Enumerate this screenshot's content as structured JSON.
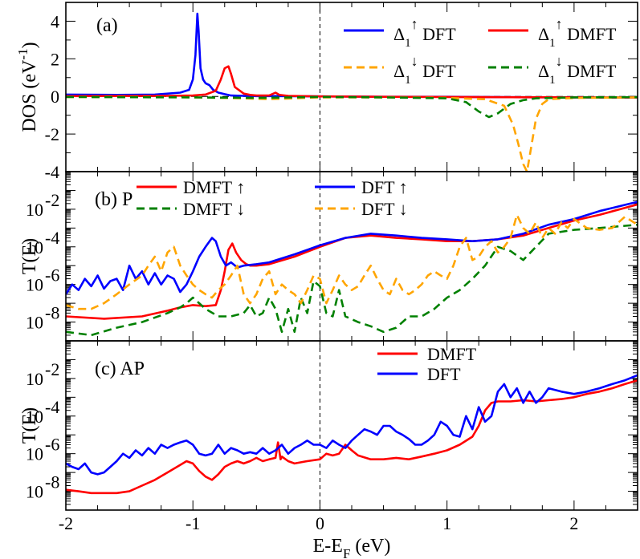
{
  "chart_data": [
    {
      "panel": "(a)",
      "type": "line",
      "ylabel": "DOS (eV",
      "ylabel_sup": "-1",
      "ylabel_close": ")",
      "ylim": [
        -4,
        5
      ],
      "yticks": [
        -4,
        -2,
        0,
        2,
        4
      ],
      "xlim": [
        -2,
        2.5
      ],
      "legend": "top-right",
      "series": [
        {
          "name": "DFT",
          "sym": "Δ",
          "sub": "1",
          "arrow": "↑",
          "color": "#0000ff",
          "dash": "",
          "x": [
            -2,
            -1.6,
            -1.3,
            -1.1,
            -1.03,
            -1,
            -0.98,
            -0.965,
            -0.955,
            -0.94,
            -0.92,
            -0.9,
            -0.87,
            -0.84,
            -0.8,
            -0.75,
            -0.7,
            -0.6,
            -0.5,
            -0.35,
            -0.2,
            0,
            0.5,
            1,
            1.5,
            2,
            2.5
          ],
          "y": [
            0.1,
            0.08,
            0.1,
            0.2,
            0.35,
            0.9,
            2.2,
            4.4,
            3.5,
            1.5,
            0.9,
            0.7,
            0.6,
            0.35,
            0.2,
            0.12,
            0.05,
            0.03,
            0.02,
            0.02,
            0.01,
            0,
            -0.02,
            -0.02,
            -0.04,
            -0.05,
            -0.06
          ]
        },
        {
          "name": "DMFT",
          "sym": "Δ",
          "sub": "1",
          "arrow": "↑",
          "color": "#ff0000",
          "dash": "",
          "x": [
            -2,
            -1.2,
            -1,
            -0.9,
            -0.82,
            -0.78,
            -0.75,
            -0.72,
            -0.7,
            -0.67,
            -0.63,
            -0.6,
            -0.55,
            -0.5,
            -0.4,
            -0.35,
            -0.32,
            -0.25,
            0,
            0.5,
            1,
            2,
            2.5
          ],
          "y": [
            0.02,
            0.03,
            0.05,
            0.1,
            0.3,
            0.9,
            1.5,
            1.6,
            1.2,
            0.5,
            0.3,
            0.15,
            0.08,
            0.05,
            0.05,
            0.2,
            0.08,
            0.03,
            0,
            -0.02,
            -0.03,
            -0.05,
            -0.06
          ]
        },
        {
          "name": "DFT",
          "sym": "Δ",
          "sub": "1",
          "arrow": "↓",
          "color": "#ffa500",
          "dash": "10,6",
          "x": [
            -2,
            -1.5,
            -1,
            -0.6,
            -0.4,
            -0.2,
            0,
            0.5,
            1,
            1.3,
            1.45,
            1.52,
            1.56,
            1.6,
            1.63,
            1.66,
            1.7,
            1.75,
            1.8,
            2,
            2.5
          ],
          "y": [
            -0.03,
            -0.03,
            -0.05,
            -0.1,
            -0.15,
            -0.1,
            -0.05,
            -0.05,
            -0.08,
            -0.15,
            -0.5,
            -1.5,
            -2.5,
            -3.6,
            -4,
            -2.8,
            -1.2,
            -0.4,
            -0.15,
            -0.08,
            -0.05
          ]
        },
        {
          "name": "DMFT",
          "sym": "Δ",
          "sub": "1",
          "arrow": "↓",
          "color": "#008000",
          "dash": "10,6",
          "x": [
            -2,
            -1.5,
            -1,
            -0.5,
            -0.3,
            0,
            0.5,
            1,
            1.15,
            1.25,
            1.33,
            1.4,
            1.5,
            1.6,
            1.7,
            2,
            2.5
          ],
          "y": [
            -0.03,
            -0.04,
            -0.05,
            -0.08,
            -0.06,
            -0.03,
            -0.05,
            -0.1,
            -0.3,
            -0.8,
            -1.1,
            -0.9,
            -0.4,
            -0.2,
            -0.1,
            -0.05,
            -0.04
          ]
        }
      ]
    },
    {
      "panel": "(b) P",
      "type": "line",
      "ylabel": "T(E)",
      "yscale": "log",
      "ylim": [
        1e-09,
        1
      ],
      "yticks": [
        -8,
        -6,
        -4,
        -2
      ],
      "xlim": [
        -2,
        2.5
      ],
      "legend": "top-left",
      "series": [
        {
          "name": "DMFT",
          "arrow": "↑",
          "color": "#ff0000",
          "dash": "",
          "x": [
            -2,
            -1.7,
            -1.4,
            -1.2,
            -1.1,
            -1,
            -0.9,
            -0.82,
            -0.78,
            -0.75,
            -0.72,
            -0.69,
            -0.66,
            -0.62,
            -0.58,
            -0.55,
            -0.5,
            -0.4,
            -0.2,
            0,
            0.2,
            0.4,
            0.6,
            0.8,
            1,
            1.2,
            1.4,
            1.6,
            1.8,
            2,
            2.2,
            2.5
          ],
          "y": [
            2e-08,
            1.5e-08,
            2e-08,
            4e-08,
            6e-08,
            8e-08,
            7e-08,
            8e-08,
            5e-07,
            5e-06,
            7e-05,
            0.00015,
            5e-05,
            2e-05,
            1.2e-05,
            1e-05,
            1e-05,
            1.2e-05,
            3e-05,
            0.0001,
            0.0003,
            0.0004,
            0.0003,
            0.00025,
            0.0002,
            0.0002,
            0.00025,
            0.0004,
            0.001,
            0.0025,
            0.005,
            0.018
          ]
        },
        {
          "name": "DMFT",
          "arrow": "↓",
          "color": "#008000",
          "dash": "10,6",
          "x": [
            -2,
            -1.8,
            -1.6,
            -1.4,
            -1.2,
            -1.1,
            -1.05,
            -1,
            -0.95,
            -0.9,
            -0.8,
            -0.7,
            -0.6,
            -0.55,
            -0.5,
            -0.45,
            -0.4,
            -0.35,
            -0.3,
            -0.25,
            -0.2,
            -0.15,
            -0.1,
            -0.05,
            0,
            0.05,
            0.1,
            0.15,
            0.2,
            0.3,
            0.4,
            0.5,
            0.6,
            0.7,
            0.8,
            0.9,
            1,
            1.1,
            1.2,
            1.3,
            1.4,
            1.5,
            1.6,
            1.7,
            1.8,
            2,
            2.2,
            2.5
          ],
          "y": [
            3e-09,
            2e-09,
            5e-09,
            1e-08,
            3e-08,
            6e-08,
            1e-07,
            2e-07,
            1e-07,
            5e-08,
            2e-08,
            2e-08,
            3e-08,
            8e-08,
            2e-08,
            3e-08,
            2e-07,
            5e-08,
            3e-09,
            5e-08,
            3e-09,
            2e-07,
            3e-08,
            1.5e-06,
            8e-07,
            3e-08,
            2e-08,
            5e-07,
            2e-08,
            1e-08,
            6e-09,
            3e-09,
            5e-09,
            2e-08,
            2e-08,
            5e-08,
            2e-07,
            5e-07,
            2e-06,
            1e-05,
            0.0001,
            6e-05,
            2e-05,
            0.0001,
            0.0005,
            0.0008,
            0.001,
            0.0015
          ]
        },
        {
          "name": "DFT",
          "arrow": "↑",
          "color": "#0000ff",
          "dash": "",
          "x": [
            -2,
            -1.95,
            -1.9,
            -1.85,
            -1.8,
            -1.75,
            -1.7,
            -1.65,
            -1.6,
            -1.55,
            -1.5,
            -1.45,
            -1.4,
            -1.35,
            -1.3,
            -1.25,
            -1.2,
            -1.15,
            -1.1,
            -1.05,
            -1,
            -0.95,
            -0.9,
            -0.85,
            -0.82,
            -0.78,
            -0.74,
            -0.7,
            -0.65,
            -0.6,
            -0.5,
            -0.4,
            -0.2,
            0,
            0.2,
            0.4,
            0.6,
            0.8,
            1,
            1.2,
            1.4,
            1.6,
            1.8,
            2,
            2.2,
            2.5
          ],
          "y": [
            3e-07,
            1e-06,
            5e-07,
            2e-06,
            8e-07,
            3e-06,
            6e-07,
            1.5e-06,
            2e-06,
            5e-07,
            1e-05,
            2e-06,
            5e-06,
            1e-06,
            4e-06,
            1e-06,
            3e-06,
            2e-06,
            4e-07,
            1e-06,
            5e-06,
            3e-05,
            0.0001,
            0.0003,
            0.0002,
            3e-05,
            1e-05,
            1.5e-05,
            8e-06,
            1e-05,
            1.2e-05,
            1.5e-05,
            4e-05,
            0.00012,
            0.0003,
            0.0005,
            0.0004,
            0.0003,
            0.00025,
            0.0002,
            0.00025,
            0.0005,
            0.0015,
            0.003,
            0.008,
            0.025
          ]
        },
        {
          "name": "DFT",
          "arrow": "↓",
          "color": "#ffa500",
          "dash": "10,6",
          "x": [
            -2,
            -1.9,
            -1.8,
            -1.7,
            -1.6,
            -1.5,
            -1.4,
            -1.35,
            -1.3,
            -1.25,
            -1.2,
            -1.15,
            -1.1,
            -1.05,
            -1,
            -0.95,
            -0.9,
            -0.85,
            -0.8,
            -0.75,
            -0.7,
            -0.65,
            -0.6,
            -0.55,
            -0.5,
            -0.45,
            -0.4,
            -0.35,
            -0.3,
            -0.25,
            -0.2,
            -0.15,
            -0.1,
            -0.05,
            0,
            0.05,
            0.1,
            0.15,
            0.2,
            0.25,
            0.3,
            0.35,
            0.4,
            0.45,
            0.5,
            0.55,
            0.6,
            0.65,
            0.7,
            0.75,
            0.8,
            0.85,
            0.9,
            0.95,
            1,
            1.05,
            1.1,
            1.15,
            1.2,
            1.25,
            1.3,
            1.35,
            1.4,
            1.45,
            1.5,
            1.55,
            1.6,
            1.65,
            1.7,
            1.75,
            1.8,
            1.85,
            1.9,
            1.95,
            2,
            2.1,
            2.2,
            2.3,
            2.4,
            2.5
          ],
          "y": [
            8e-08,
            5e-08,
            5e-08,
            1e-07,
            3e-07,
            1e-06,
            3e-06,
            1e-05,
            3e-05,
            5e-06,
            5e-05,
            0.0001,
            1e-05,
            3e-06,
            1e-06,
            5e-07,
            3e-07,
            2e-07,
            5e-07,
            1e-06,
            3e-06,
            1e-05,
            3e-07,
            1e-07,
            3e-07,
            2e-06,
            5e-06,
            3e-07,
            1e-06,
            5e-07,
            3e-07,
            1e-07,
            5e-07,
            3e-06,
            2e-06,
            1e-07,
            5e-07,
            3e-06,
            1e-06,
            5e-07,
            8e-07,
            3e-06,
            1e-05,
            2e-06,
            5e-07,
            3e-07,
            2e-06,
            5e-07,
            3e-07,
            5e-07,
            1e-06,
            3e-06,
            5e-06,
            3e-06,
            2e-06,
            1e-05,
            0.0001,
            0.0003,
            2e-05,
            3e-05,
            0.0001,
            0.0002,
            5e-05,
            0.0001,
            0.0003,
            0.005,
            0.001,
            0.0005,
            0.002,
            0.0003,
            0.001,
            0.0005,
            0.002,
            0.001,
            0.003,
            0.001,
            0.0008,
            0.001,
            0.004,
            0.0015
          ]
        }
      ],
      "legend_order": [
        0,
        1,
        2,
        3
      ]
    },
    {
      "panel": "(c) AP",
      "type": "line",
      "ylabel": "T(E)",
      "yscale": "log",
      "ylim": [
        1e-09,
        1
      ],
      "yticks": [
        -8,
        -6,
        -4,
        -2
      ],
      "xlim": [
        -2,
        2.5
      ],
      "xticks": [
        -2,
        -1,
        0,
        1,
        2
      ],
      "xlabel_main": "E-E",
      "xlabel_sub": "F",
      "xlabel_unit": " (eV)",
      "legend": "top-center",
      "series": [
        {
          "name": "DMFT",
          "color": "#ff0000",
          "dash": "",
          "x": [
            -2,
            -1.9,
            -1.8,
            -1.7,
            -1.6,
            -1.5,
            -1.4,
            -1.3,
            -1.2,
            -1.1,
            -1.05,
            -1,
            -0.95,
            -0.9,
            -0.85,
            -0.8,
            -0.75,
            -0.7,
            -0.65,
            -0.6,
            -0.55,
            -0.5,
            -0.45,
            -0.4,
            -0.35,
            -0.33,
            -0.31,
            -0.3,
            -0.25,
            -0.2,
            -0.1,
            0,
            0.05,
            0.1,
            0.15,
            0.2,
            0.25,
            0.3,
            0.4,
            0.5,
            0.6,
            0.7,
            0.8,
            0.9,
            1,
            1.1,
            1.2,
            1.25,
            1.3,
            1.35,
            1.4,
            1.5,
            1.6,
            1.7,
            1.8,
            1.9,
            2,
            2.1,
            2.2,
            2.3,
            2.4,
            2.5
          ],
          "y": [
            1.2e-08,
            1e-08,
            8e-09,
            8e-09,
            8e-09,
            1e-08,
            2e-08,
            4e-08,
            1e-07,
            2.5e-07,
            4e-07,
            3e-07,
            1.2e-07,
            6e-08,
            4e-08,
            8e-08,
            2e-07,
            3e-07,
            4e-07,
            3e-07,
            4e-07,
            6e-07,
            4e-07,
            5e-07,
            6e-07,
            4e-06,
            5e-07,
            7e-07,
            4e-07,
            3e-07,
            4e-07,
            5e-07,
            1e-06,
            8e-07,
            1e-06,
            3e-06,
            1.5e-06,
            8e-07,
            5e-07,
            5e-07,
            6e-07,
            5e-07,
            7e-07,
            1e-06,
            1.5e-06,
            3e-06,
            8e-06,
            3e-05,
            0.0002,
            0.0005,
            0.0006,
            0.0006,
            0.0007,
            0.0006,
            0.0007,
            0.0008,
            0.001,
            0.0015,
            0.002,
            0.003,
            0.005,
            0.008
          ]
        },
        {
          "name": "DFT",
          "color": "#0000ff",
          "dash": "",
          "x": [
            -2,
            -1.95,
            -1.9,
            -1.85,
            -1.8,
            -1.75,
            -1.7,
            -1.65,
            -1.6,
            -1.55,
            -1.5,
            -1.45,
            -1.4,
            -1.35,
            -1.3,
            -1.25,
            -1.2,
            -1.15,
            -1.1,
            -1.05,
            -1,
            -0.95,
            -0.9,
            -0.85,
            -0.8,
            -0.75,
            -0.7,
            -0.65,
            -0.6,
            -0.55,
            -0.5,
            -0.45,
            -0.4,
            -0.35,
            -0.3,
            -0.25,
            -0.2,
            -0.15,
            -0.1,
            -0.05,
            0,
            0.05,
            0.1,
            0.15,
            0.2,
            0.25,
            0.3,
            0.35,
            0.4,
            0.45,
            0.5,
            0.55,
            0.6,
            0.65,
            0.7,
            0.75,
            0.8,
            0.85,
            0.9,
            0.95,
            1,
            1.05,
            1.1,
            1.15,
            1.2,
            1.25,
            1.3,
            1.35,
            1.4,
            1.45,
            1.5,
            1.55,
            1.6,
            1.65,
            1.7,
            1.75,
            1.8,
            1.9,
            2,
            2.1,
            2.2,
            2.3,
            2.4,
            2.5
          ],
          "y": [
            3e-07,
            2e-07,
            1.5e-07,
            3e-07,
            1e-07,
            8e-08,
            1e-07,
            2e-07,
            4e-07,
            1e-06,
            6e-07,
            1.5e-06,
            8e-07,
            2e-06,
            1e-06,
            3e-06,
            2e-06,
            3e-06,
            4e-06,
            5e-06,
            3e-06,
            1e-06,
            8e-07,
            1e-06,
            3e-06,
            1e-06,
            2e-06,
            1.5e-06,
            1e-06,
            1.2e-06,
            1e-06,
            2e-06,
            1e-06,
            1.5e-06,
            3e-06,
            1e-06,
            2e-06,
            3e-06,
            5e-06,
            3e-06,
            3e-06,
            2e-06,
            5e-06,
            3e-06,
            2e-06,
            5e-06,
            1e-05,
            2e-05,
            1.5e-05,
            1e-05,
            3e-05,
            3e-05,
            1.5e-05,
            1e-05,
            6e-06,
            3e-06,
            3e-06,
            5e-06,
            1e-05,
            5e-05,
            3e-05,
            1e-05,
            8e-06,
            0.0001,
            2e-05,
            0.0003,
            5e-05,
            0.0001,
            0.002,
            0.005,
            0.001,
            0.003,
            0.0005,
            0.002,
            0.0005,
            0.001,
            0.003,
            0.002,
            0.0015,
            0.002,
            0.003,
            0.005,
            0.008,
            0.015
          ]
        }
      ]
    }
  ]
}
